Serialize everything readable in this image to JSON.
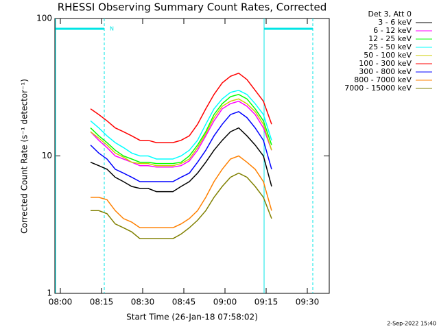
{
  "chart_data": {
    "type": "line",
    "title": "RHESSI Observing Summary Count Rates, Corrected",
    "x_label": "Start Time (26-Jan-18 07:58:02)",
    "y_label": "Corrected Count Rate (s⁻¹ detector⁻¹)",
    "legend_title": "Det 3, Att 0",
    "footer": "2-Sep-2022 15:40",
    "log_y": true,
    "ylim": [
      1,
      100
    ],
    "yticks": [
      1,
      10,
      100
    ],
    "xlim": [
      "07:58",
      "09:38"
    ],
    "xticks": [
      "08:00",
      "08:15",
      "08:30",
      "08:45",
      "09:00",
      "09:15",
      "09:30"
    ],
    "night_intervals": [
      {
        "start": "07:58",
        "end": "08:16",
        "label": "N"
      },
      {
        "start": "09:14",
        "end": "09:32"
      }
    ],
    "x": [
      "08:11",
      "08:14",
      "08:17",
      "08:20",
      "08:23",
      "08:26",
      "08:29",
      "08:32",
      "08:35",
      "08:38",
      "08:41",
      "08:44",
      "08:47",
      "08:50",
      "08:53",
      "08:56",
      "08:59",
      "09:02",
      "09:05",
      "09:08",
      "09:11",
      "09:14",
      "09:17"
    ],
    "series": [
      {
        "name": "3 - 6 keV",
        "color": "#000000",
        "values": [
          9,
          8.5,
          8,
          7,
          6.5,
          6,
          5.8,
          5.8,
          5.5,
          5.5,
          5.5,
          6,
          6.5,
          7.5,
          9,
          11,
          13,
          15,
          16,
          14,
          12,
          10,
          6
        ]
      },
      {
        "name": "6 - 12 keV",
        "color": "#ff00ff",
        "values": [
          15,
          13,
          11.5,
          10,
          9.5,
          9,
          8.5,
          8.5,
          8.3,
          8.3,
          8.3,
          8.5,
          9.2,
          11,
          14,
          18,
          22,
          24,
          25,
          23,
          20,
          16,
          11
        ]
      },
      {
        "name": "12 - 25 keV",
        "color": "#00ff00",
        "values": [
          16,
          14,
          12.5,
          11,
          10,
          9.5,
          9,
          9,
          8.8,
          8.8,
          8.8,
          9,
          10,
          12,
          15,
          20,
          24,
          27,
          28,
          26,
          22,
          18,
          12
        ]
      },
      {
        "name": "25 - 50 keV",
        "color": "#00ffff",
        "values": [
          18,
          16,
          14,
          12.5,
          11.5,
          10.5,
          10,
          10,
          9.5,
          9.5,
          9.5,
          10,
          11,
          13,
          17,
          22,
          26,
          29,
          30,
          28,
          24,
          20,
          13
        ]
      },
      {
        "name": "50 - 100 keV",
        "color": "#cccc00",
        "values": [
          15,
          13.5,
          12,
          10.5,
          9.8,
          9,
          8.8,
          8.8,
          8.5,
          8.5,
          8.5,
          8.8,
          9.5,
          11.5,
          14.5,
          19,
          23,
          25,
          26,
          24,
          21,
          17,
          11
        ]
      },
      {
        "name": "100 - 300 keV",
        "color": "#ff0000",
        "values": [
          22,
          20,
          18,
          16,
          15,
          14,
          13,
          13,
          12.5,
          12.5,
          12.5,
          13,
          14,
          17,
          22,
          28,
          34,
          38,
          40,
          36,
          30,
          25,
          17
        ]
      },
      {
        "name": "300 - 800 keV",
        "color": "#0000ff",
        "values": [
          12,
          10.5,
          9.5,
          8,
          7.5,
          7,
          6.5,
          6.5,
          6.5,
          6.5,
          6.5,
          7,
          7.5,
          9,
          11,
          14,
          17,
          20,
          21,
          19,
          16,
          13,
          8
        ]
      },
      {
        "name": "800 - 7000 keV",
        "color": "#ff8000",
        "values": [
          5,
          5,
          4.8,
          4,
          3.5,
          3.3,
          3,
          3,
          3,
          3,
          3,
          3.2,
          3.5,
          4,
          5,
          6.5,
          8,
          9.5,
          10,
          9,
          8,
          6.5,
          4
        ]
      },
      {
        "name": "7000 - 15000 keV",
        "color": "#808000",
        "values": [
          4,
          4,
          3.8,
          3.2,
          3,
          2.8,
          2.5,
          2.5,
          2.5,
          2.5,
          2.5,
          2.7,
          3,
          3.4,
          4,
          5,
          6,
          7,
          7.5,
          7,
          6,
          5,
          3.5
        ]
      }
    ]
  }
}
